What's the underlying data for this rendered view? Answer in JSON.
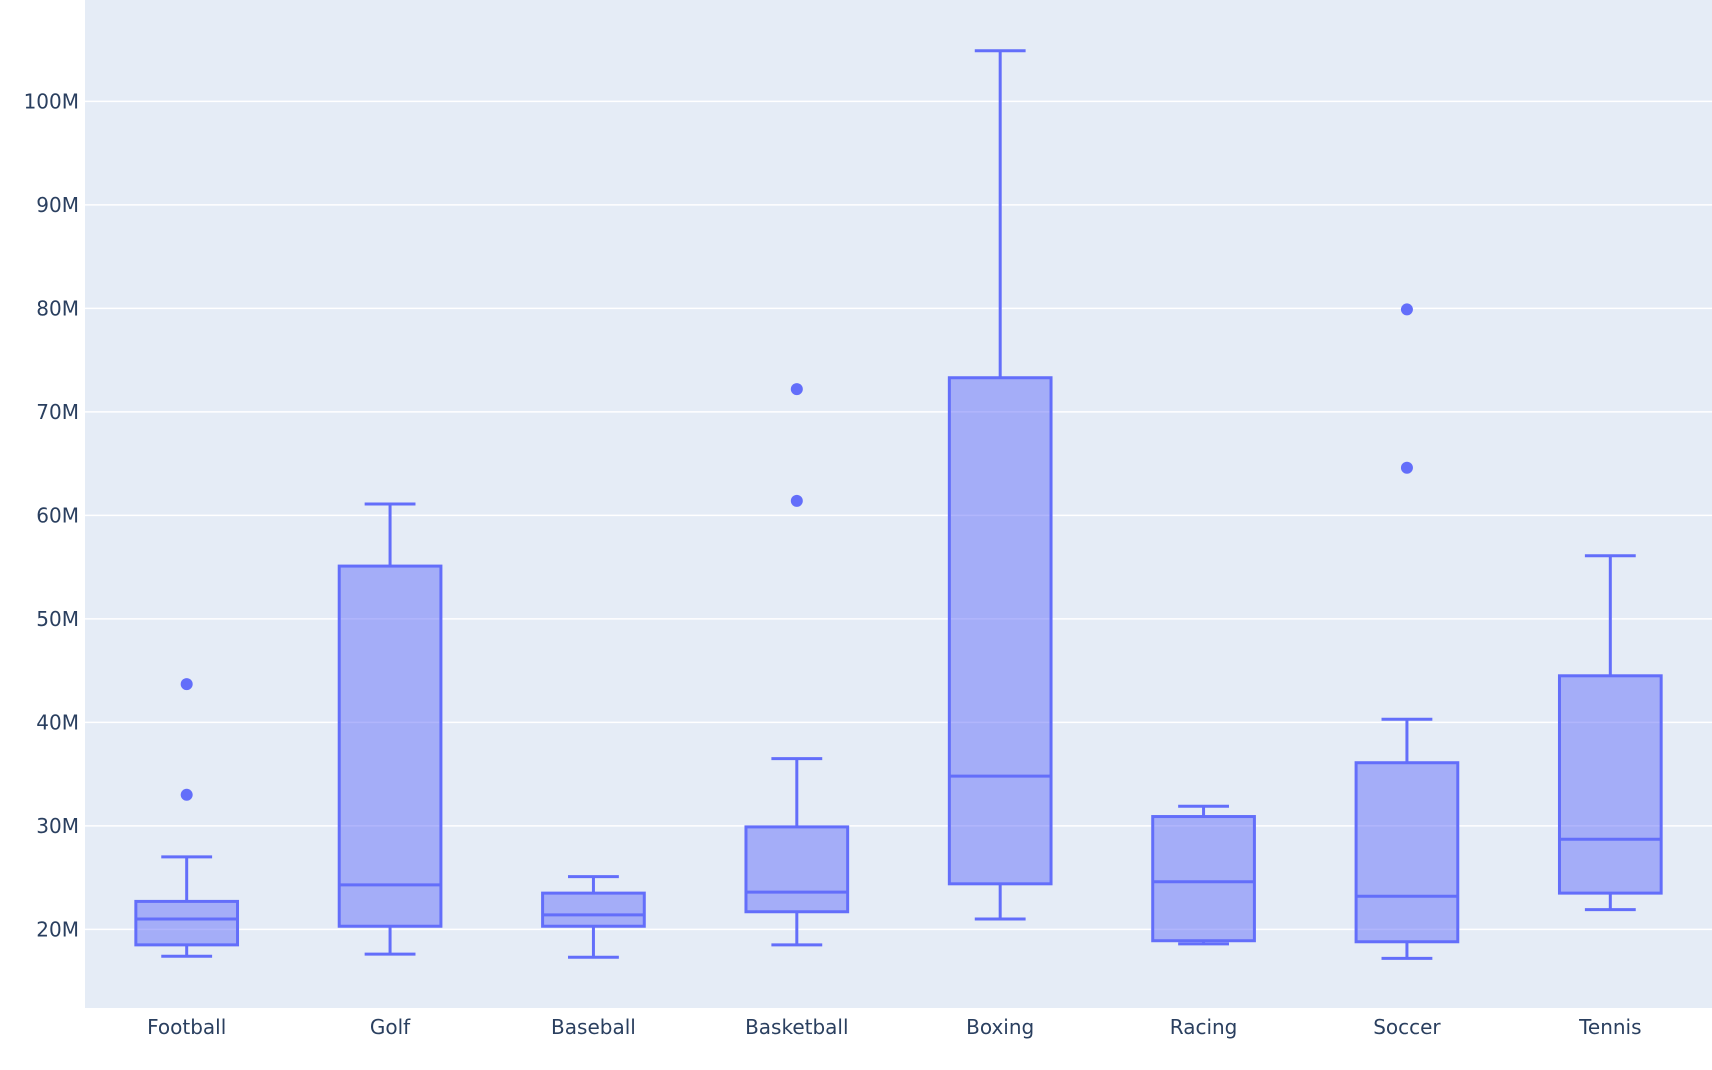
{
  "chart_data": {
    "type": "box",
    "title": "",
    "xlabel": "",
    "ylabel": "",
    "ylim": [
      12.4,
      109.8
    ],
    "y_unit_suffix": "M",
    "yticks": [
      20,
      30,
      40,
      50,
      60,
      70,
      80,
      90,
      100
    ],
    "ytick_labels": [
      "20M",
      "30M",
      "40M",
      "50M",
      "60M",
      "70M",
      "80M",
      "90M",
      "100M"
    ],
    "grid": true,
    "legend": "none",
    "colors": {
      "line": "#636efa",
      "fill": "rgba(99,110,250,0.5)",
      "plot_bg": "#e5ecf6",
      "grid": "#ffffff",
      "text": "#2a3f5f"
    },
    "categories": [
      "Football",
      "Golf",
      "Baseball",
      "Basketball",
      "Boxing",
      "Racing",
      "Soccer",
      "Tennis"
    ],
    "boxes": [
      {
        "name": "Football",
        "lower": 17.4,
        "q1": 18.5,
        "median": 21.0,
        "q3": 22.7,
        "upper": 27.0,
        "outliers": [
          33.0,
          43.7
        ]
      },
      {
        "name": "Golf",
        "lower": 17.6,
        "q1": 20.3,
        "median": 24.3,
        "q3": 55.1,
        "upper": 61.1,
        "outliers": []
      },
      {
        "name": "Baseball",
        "lower": 17.3,
        "q1": 20.3,
        "median": 21.4,
        "q3": 23.5,
        "upper": 25.1,
        "outliers": []
      },
      {
        "name": "Basketball",
        "lower": 18.5,
        "q1": 21.7,
        "median": 23.6,
        "q3": 29.9,
        "upper": 36.5,
        "outliers": [
          61.4,
          72.2
        ]
      },
      {
        "name": "Boxing",
        "lower": 21.0,
        "q1": 24.4,
        "median": 34.8,
        "q3": 73.3,
        "upper": 104.9,
        "outliers": []
      },
      {
        "name": "Racing",
        "lower": 18.6,
        "q1": 18.9,
        "median": 24.6,
        "q3": 30.9,
        "upper": 31.9,
        "outliers": []
      },
      {
        "name": "Soccer",
        "lower": 17.2,
        "q1": 18.8,
        "median": 23.2,
        "q3": 36.1,
        "upper": 40.3,
        "outliers": [
          64.6,
          79.9
        ]
      },
      {
        "name": "Tennis",
        "lower": 21.9,
        "q1": 23.5,
        "median": 28.7,
        "q3": 44.5,
        "upper": 56.1,
        "outliers": []
      }
    ]
  }
}
